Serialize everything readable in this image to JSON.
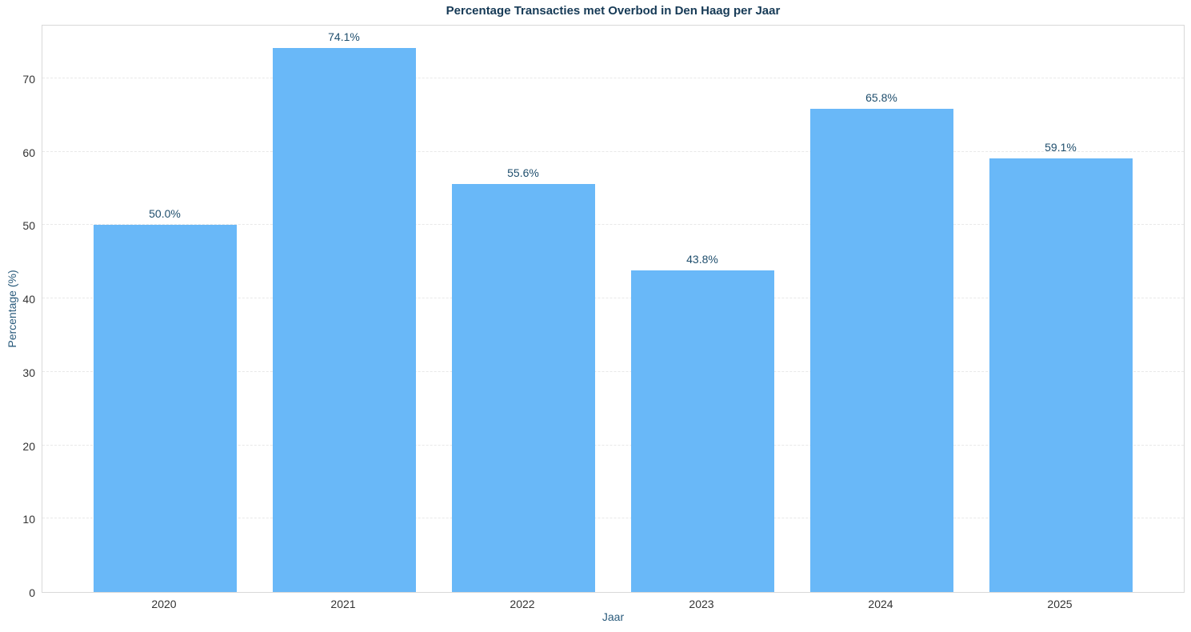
{
  "chart_data": {
    "type": "bar",
    "title": "Percentage Transacties met Overbod in Den Haag per Jaar",
    "xlabel": "Jaar",
    "ylabel": "Percentage (%)",
    "categories": [
      "2020",
      "2021",
      "2022",
      "2023",
      "2024",
      "2025"
    ],
    "values": [
      50.0,
      74.1,
      55.6,
      43.8,
      65.8,
      59.1
    ],
    "value_labels": [
      "50.0%",
      "74.1%",
      "55.6%",
      "43.8%",
      "65.8%",
      "59.1%"
    ],
    "yticks": [
      0,
      10,
      20,
      30,
      40,
      50,
      60,
      70
    ],
    "ylim": [
      0,
      77.4
    ],
    "grid": "horizontal-dashed",
    "legend": "none"
  },
  "colors": {
    "bar": "#69b8f8",
    "title": "#163a56",
    "axis_label": "#2a5b7c",
    "value_label": "#1f4e6d",
    "tick_label": "#333333",
    "gridline": "#e8e8e8",
    "spine": "#d9d9d9",
    "background": "#ffffff"
  }
}
